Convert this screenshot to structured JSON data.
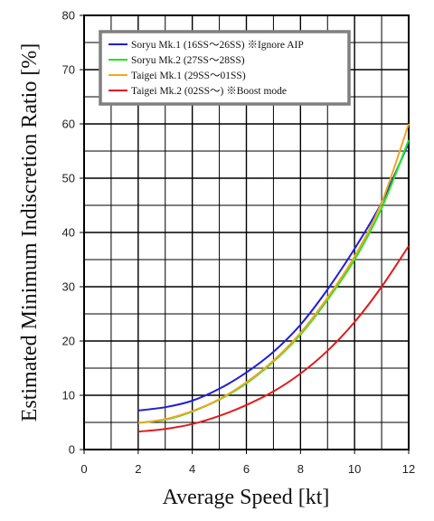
{
  "chart_data": {
    "type": "line",
    "xlabel": "Average Speed [kt]",
    "ylabel": "Estimated Minimum Indiscretion Ratio [%]",
    "xlim": [
      0,
      12
    ],
    "ylim": [
      0,
      80
    ],
    "x_ticks": [
      "0",
      "2",
      "4",
      "6",
      "8",
      "10",
      "12"
    ],
    "y_ticks": [
      "0",
      "10",
      "20",
      "30",
      "40",
      "50",
      "60",
      "70",
      "80"
    ],
    "grid": true,
    "legend_position": "top-left",
    "series": [
      {
        "name": "Soryu Mk.1 (16SS～26SS) ※Ignore AIP",
        "color": "#1f1fd6",
        "x": [
          2,
          3,
          4,
          5,
          6,
          7,
          8,
          9,
          10,
          11,
          12
        ],
        "y": [
          7.2,
          7.8,
          9.0,
          11.2,
          14.2,
          18.0,
          23.0,
          29.5,
          37.0,
          45.5,
          56.5
        ]
      },
      {
        "name": "Soryu Mk.2 (27SS～28SS)",
        "color": "#1ee61e",
        "x": [
          2,
          3,
          4,
          5,
          6,
          7,
          8,
          9,
          10,
          11,
          12
        ],
        "y": [
          4.9,
          5.5,
          7.0,
          9.2,
          12.2,
          16.2,
          21.2,
          27.6,
          35.0,
          44.5,
          57.0
        ]
      },
      {
        "name": "Taigei Mk.1 (29SS～01SS)",
        "color": "#f2a623",
        "x": [
          2,
          3,
          4,
          5,
          6,
          7,
          8,
          9,
          10,
          11,
          12
        ],
        "y": [
          4.9,
          5.6,
          7.1,
          9.3,
          12.4,
          16.4,
          21.5,
          28.0,
          35.6,
          45.5,
          60.0
        ]
      },
      {
        "name": "Taigei Mk.2 (02SS～) ※Boost mode",
        "color": "#e01b1b",
        "x": [
          2,
          3,
          4,
          5,
          6,
          7,
          8,
          9,
          10,
          11,
          12
        ],
        "y": [
          3.3,
          3.8,
          4.7,
          6.2,
          8.2,
          10.7,
          14.0,
          18.2,
          23.5,
          30.0,
          37.5
        ]
      }
    ]
  }
}
